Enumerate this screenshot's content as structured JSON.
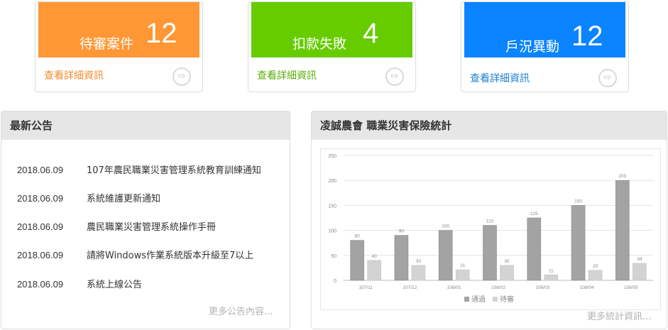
{
  "cards": [
    {
      "label": "待審案件",
      "count": "12",
      "link": "查看詳細資訊",
      "color": "#ff9735",
      "link_color": "#f08c2e"
    },
    {
      "label": "扣款失敗",
      "count": "4",
      "link": "查看詳細資訊",
      "color": "#66cc00",
      "link_color": "#5aad08"
    },
    {
      "label": "戶況異動",
      "count": "12",
      "link": "查看詳細資訊",
      "color": "#0a84ff",
      "link_color": "#1a7fd6"
    }
  ],
  "news": {
    "title": "最新公告",
    "items": [
      {
        "date": "2018.06.09",
        "text": "107年農民職業災害管理系統教育訓練通知"
      },
      {
        "date": "2018.06.09",
        "text": "系統維護更新通知"
      },
      {
        "date": "2018.06.09",
        "text": "農民職業災害管理系統操作手冊"
      },
      {
        "date": "2018.06.09",
        "text": "請將Windows作業系統版本升級至7以上"
      },
      {
        "date": "2018.06.09",
        "text": "系統上線公告"
      }
    ],
    "more": "更多公告內容..."
  },
  "stats": {
    "title": "凌誠農會 職業災害保險統計",
    "more": "更多統計資訊..."
  },
  "chart_data": {
    "type": "bar",
    "categories": [
      "107/11",
      "107/12",
      "108/01",
      "108/02",
      "108/03",
      "108/04",
      "108/05"
    ],
    "series": [
      {
        "name": "通過",
        "values": [
          80,
          90,
          100,
          110,
          125,
          150,
          200
        ],
        "color": "#a3a3a3"
      },
      {
        "name": "待審",
        "values": [
          40,
          30,
          21,
          30,
          11,
          20,
          34
        ],
        "color": "#d3d3d3"
      }
    ],
    "ylim": [
      0,
      250
    ],
    "yticks": [
      0,
      50,
      100,
      150,
      200,
      250
    ],
    "grid": true,
    "legend": "bottom"
  }
}
